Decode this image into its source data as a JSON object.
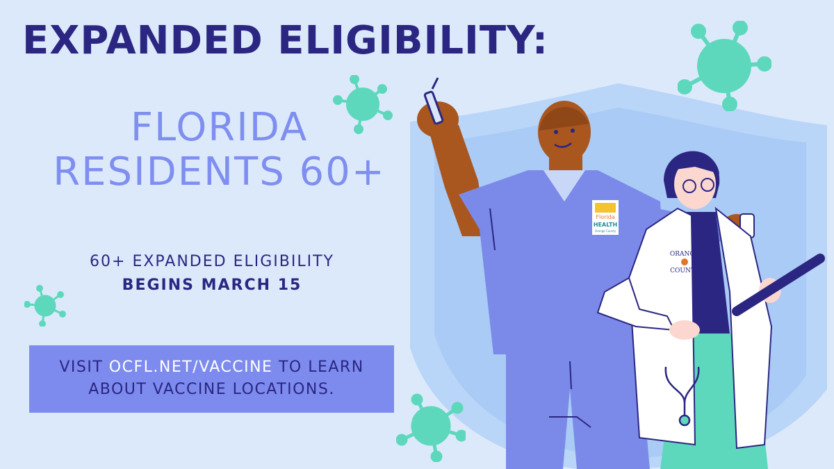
{
  "headline": "EXPANDED ELIGIBILITY:",
  "subheadline": {
    "line1": "FLORIDA",
    "line2": "RESIDENTS 60+"
  },
  "eligibility": {
    "line1": "60+ EXPANDED ELIGIBILITY",
    "line2": "BEGINS MARCH 15"
  },
  "cta": {
    "prefix": "VISIT ",
    "url": "OCFL.NET/VACCINE",
    "suffix": " TO LEARN",
    "line2": "ABOUT VACCINE LOCATIONS."
  },
  "badges": {
    "florida_health": {
      "line1": "Florida",
      "line2": "HEALTH",
      "line3": "Orange County"
    },
    "orange_county": {
      "line1": "ORANGE",
      "line2": "COUNTY"
    }
  },
  "colors": {
    "background": "#dce9fb",
    "navy": "#2a2682",
    "periwinkle": "#7f8ff0",
    "cta_box": "#7d8bee",
    "virus": "#5ed8bc",
    "shield": "#b9d5f7"
  },
  "icons": [
    "virus-icon",
    "syringe-icon",
    "stethoscope-icon",
    "vial-icon",
    "clipboard-icon"
  ]
}
